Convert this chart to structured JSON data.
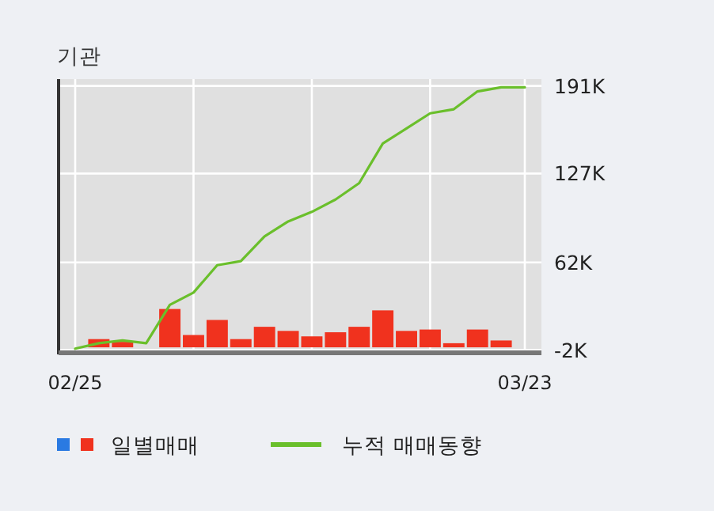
{
  "chart_data": {
    "type": "bar",
    "title": "기관",
    "categories": [
      "02/25",
      null,
      null,
      null,
      null,
      null,
      null,
      null,
      null,
      null,
      null,
      null,
      null,
      null,
      null,
      null,
      null,
      null,
      null,
      "03/23"
    ],
    "series": [
      {
        "color": "#2a7ae2",
        "values": [
          null,
          null,
          null,
          null,
          null,
          null,
          null,
          null,
          null,
          null,
          null,
          null,
          null,
          null,
          null,
          null,
          null,
          null,
          null,
          null
        ]
      },
      {
        "name": "일별매매",
        "color": "#f0321e",
        "values": [
          0,
          6,
          4,
          0,
          28,
          9,
          20,
          6,
          15,
          12,
          8,
          11,
          15,
          27,
          12,
          13,
          3,
          13,
          5,
          0
        ]
      },
      {
        "name": "누적 매매동향",
        "type": "line",
        "color": "#6abf2b",
        "values": [
          -1,
          3,
          5,
          3,
          31,
          40,
          60,
          63,
          81,
          92,
          99,
          108,
          120,
          149,
          160,
          171,
          174,
          187,
          190,
          190
        ]
      }
    ],
    "ylim": [
      -4,
      196
    ],
    "yticks": [
      {
        "value": -2,
        "label": "-2K"
      },
      {
        "value": 62,
        "label": "62K"
      },
      {
        "value": 127,
        "label": "127K"
      },
      {
        "value": 191,
        "label": "191K"
      }
    ],
    "grid": true,
    "legend": "bottom",
    "marker": "none",
    "line_style": "solid"
  }
}
